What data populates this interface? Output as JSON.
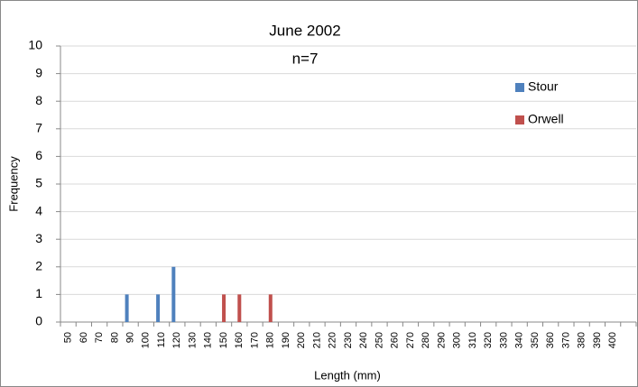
{
  "chart_data": {
    "type": "bar",
    "title": "June 2002",
    "subtitle": "n=7",
    "x_label": "Length (mm)",
    "y_label": "Frequency",
    "categories": [
      "50",
      "60",
      "70",
      "80",
      "90",
      "100",
      "110",
      "120",
      "130",
      "140",
      "150",
      "160",
      "170",
      "180",
      "190",
      "200",
      "210",
      "220",
      "230",
      "240",
      "250",
      "260",
      "270",
      "280",
      "290",
      "300",
      "310",
      "320",
      "330",
      "340",
      "350",
      "360",
      "370",
      "380",
      "390",
      "400",
      null
    ],
    "series": [
      {
        "name": "Stour",
        "color": "#4f81bd",
        "values": [
          0,
          0,
          0,
          0,
          1,
          0,
          1,
          2,
          0,
          0,
          0,
          0,
          0,
          0,
          0,
          0,
          0,
          0,
          0,
          0,
          0,
          0,
          0,
          0,
          0,
          0,
          0,
          0,
          0,
          0,
          0,
          0,
          0,
          0,
          0,
          0,
          0
        ]
      },
      {
        "name": "Orwell",
        "color": "#c0504d",
        "values": [
          0,
          0,
          0,
          0,
          0,
          0,
          0,
          0,
          0,
          0,
          1,
          1,
          0,
          1,
          0,
          0,
          0,
          0,
          0,
          0,
          0,
          0,
          0,
          0,
          0,
          0,
          0,
          0,
          0,
          0,
          0,
          0,
          0,
          0,
          0,
          0,
          0
        ]
      }
    ],
    "ylim": [
      0,
      10
    ],
    "yticks": [
      0,
      1,
      2,
      3,
      4,
      5,
      6,
      7,
      8,
      9,
      10
    ],
    "grid": true,
    "legend": "right"
  }
}
